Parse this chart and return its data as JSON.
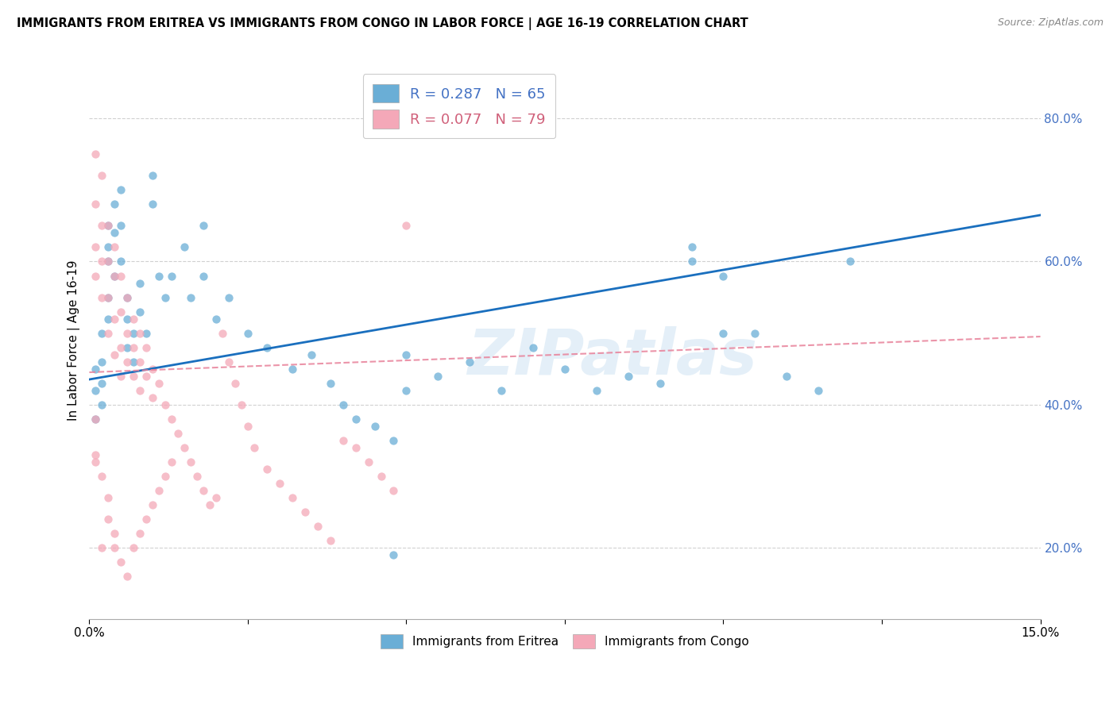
{
  "title": "IMMIGRANTS FROM ERITREA VS IMMIGRANTS FROM CONGO IN LABOR FORCE | AGE 16-19 CORRELATION CHART",
  "source": "Source: ZipAtlas.com",
  "ylabel": "In Labor Force | Age 16-19",
  "xlim": [
    0.0,
    0.15
  ],
  "ylim": [
    0.1,
    0.88
  ],
  "xticks": [
    0.0,
    0.025,
    0.05,
    0.075,
    0.1,
    0.125,
    0.15
  ],
  "xticklabels": [
    "0.0%",
    "",
    "",
    "",
    "",
    "",
    "15.0%"
  ],
  "yticks": [
    0.2,
    0.4,
    0.6,
    0.8
  ],
  "yticklabels": [
    "20.0%",
    "40.0%",
    "60.0%",
    "80.0%"
  ],
  "eritrea_color": "#6aaed6",
  "congo_color": "#f4a8b8",
  "eritrea_line_color": "#1a6fbe",
  "congo_line_color": "#e8829a",
  "watermark_text": "ZIPatlas",
  "eritrea_line_x": [
    0.0,
    0.15
  ],
  "eritrea_line_y": [
    0.435,
    0.665
  ],
  "congo_line_x": [
    0.0,
    0.15
  ],
  "congo_line_y": [
    0.445,
    0.495
  ],
  "eritrea_scatter_x": [
    0.001,
    0.001,
    0.001,
    0.002,
    0.002,
    0.002,
    0.002,
    0.003,
    0.003,
    0.003,
    0.003,
    0.003,
    0.004,
    0.004,
    0.004,
    0.005,
    0.005,
    0.005,
    0.006,
    0.006,
    0.006,
    0.007,
    0.007,
    0.008,
    0.008,
    0.009,
    0.01,
    0.01,
    0.011,
    0.012,
    0.013,
    0.015,
    0.016,
    0.018,
    0.02,
    0.022,
    0.025,
    0.028,
    0.032,
    0.035,
    0.038,
    0.04,
    0.042,
    0.045,
    0.048,
    0.05,
    0.055,
    0.06,
    0.065,
    0.07,
    0.075,
    0.08,
    0.085,
    0.09,
    0.095,
    0.1,
    0.105,
    0.11,
    0.115,
    0.12,
    0.048,
    0.05,
    0.018,
    0.095,
    0.1
  ],
  "eritrea_scatter_y": [
    0.45,
    0.42,
    0.38,
    0.5,
    0.46,
    0.43,
    0.4,
    0.65,
    0.62,
    0.6,
    0.55,
    0.52,
    0.68,
    0.64,
    0.58,
    0.7,
    0.65,
    0.6,
    0.55,
    0.52,
    0.48,
    0.5,
    0.46,
    0.57,
    0.53,
    0.5,
    0.72,
    0.68,
    0.58,
    0.55,
    0.58,
    0.62,
    0.55,
    0.58,
    0.52,
    0.55,
    0.5,
    0.48,
    0.45,
    0.47,
    0.43,
    0.4,
    0.38,
    0.37,
    0.35,
    0.42,
    0.44,
    0.46,
    0.42,
    0.48,
    0.45,
    0.42,
    0.44,
    0.43,
    0.62,
    0.58,
    0.5,
    0.44,
    0.42,
    0.6,
    0.19,
    0.47,
    0.65,
    0.6,
    0.5
  ],
  "congo_scatter_x": [
    0.001,
    0.001,
    0.001,
    0.001,
    0.002,
    0.002,
    0.002,
    0.002,
    0.003,
    0.003,
    0.003,
    0.003,
    0.004,
    0.004,
    0.004,
    0.004,
    0.005,
    0.005,
    0.005,
    0.005,
    0.006,
    0.006,
    0.006,
    0.007,
    0.007,
    0.007,
    0.008,
    0.008,
    0.008,
    0.009,
    0.009,
    0.01,
    0.01,
    0.011,
    0.012,
    0.013,
    0.014,
    0.015,
    0.016,
    0.017,
    0.018,
    0.019,
    0.02,
    0.021,
    0.022,
    0.023,
    0.024,
    0.025,
    0.026,
    0.028,
    0.03,
    0.032,
    0.034,
    0.036,
    0.038,
    0.04,
    0.042,
    0.044,
    0.046,
    0.048,
    0.001,
    0.002,
    0.003,
    0.003,
    0.004,
    0.004,
    0.005,
    0.006,
    0.007,
    0.008,
    0.009,
    0.01,
    0.011,
    0.012,
    0.013,
    0.05,
    0.002,
    0.001,
    0.001
  ],
  "congo_scatter_y": [
    0.75,
    0.68,
    0.62,
    0.58,
    0.72,
    0.65,
    0.6,
    0.55,
    0.65,
    0.6,
    0.55,
    0.5,
    0.62,
    0.58,
    0.52,
    0.47,
    0.58,
    0.53,
    0.48,
    0.44,
    0.55,
    0.5,
    0.46,
    0.52,
    0.48,
    0.44,
    0.5,
    0.46,
    0.42,
    0.48,
    0.44,
    0.45,
    0.41,
    0.43,
    0.4,
    0.38,
    0.36,
    0.34,
    0.32,
    0.3,
    0.28,
    0.26,
    0.27,
    0.5,
    0.46,
    0.43,
    0.4,
    0.37,
    0.34,
    0.31,
    0.29,
    0.27,
    0.25,
    0.23,
    0.21,
    0.35,
    0.34,
    0.32,
    0.3,
    0.28,
    0.32,
    0.3,
    0.27,
    0.24,
    0.22,
    0.2,
    0.18,
    0.16,
    0.2,
    0.22,
    0.24,
    0.26,
    0.28,
    0.3,
    0.32,
    0.65,
    0.2,
    0.38,
    0.33
  ]
}
